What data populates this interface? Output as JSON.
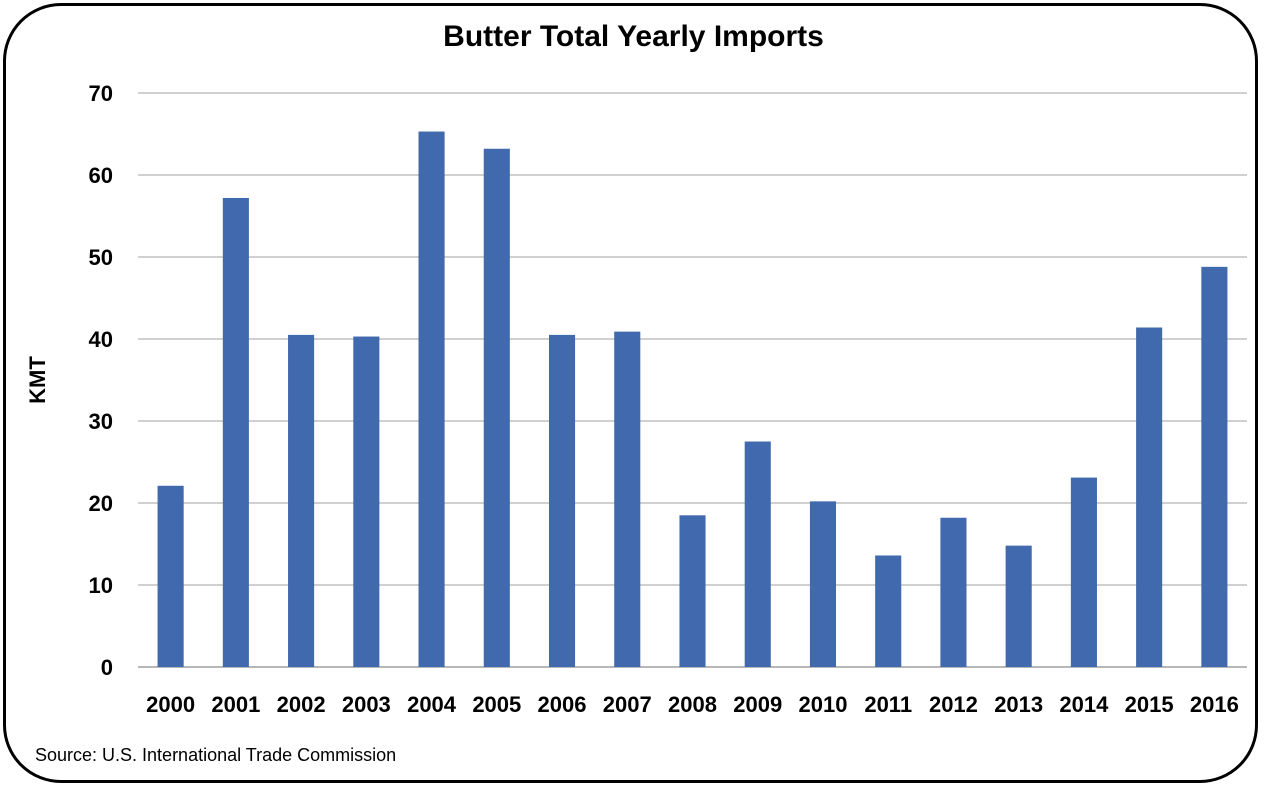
{
  "chart_data": {
    "type": "bar",
    "title": "Butter Total Yearly Imports",
    "xlabel": "",
    "ylabel": "KMT",
    "ylim": [
      0,
      70
    ],
    "yticks": [
      0,
      10,
      20,
      30,
      40,
      50,
      60,
      70
    ],
    "grid": true,
    "legend": "none",
    "categories": [
      "2000",
      "2001",
      "2002",
      "2003",
      "2004",
      "2005",
      "2006",
      "2007",
      "2008",
      "2009",
      "2010",
      "2011",
      "2012",
      "2013",
      "2014",
      "2015",
      "2016"
    ],
    "values": [
      22.1,
      57.2,
      40.5,
      40.3,
      65.3,
      63.2,
      40.5,
      40.9,
      18.5,
      27.5,
      20.2,
      13.6,
      18.2,
      14.8,
      23.1,
      41.4,
      48.8
    ],
    "bar_color": "#4169ad",
    "source": "Source:  U.S. International Trade Commission"
  }
}
